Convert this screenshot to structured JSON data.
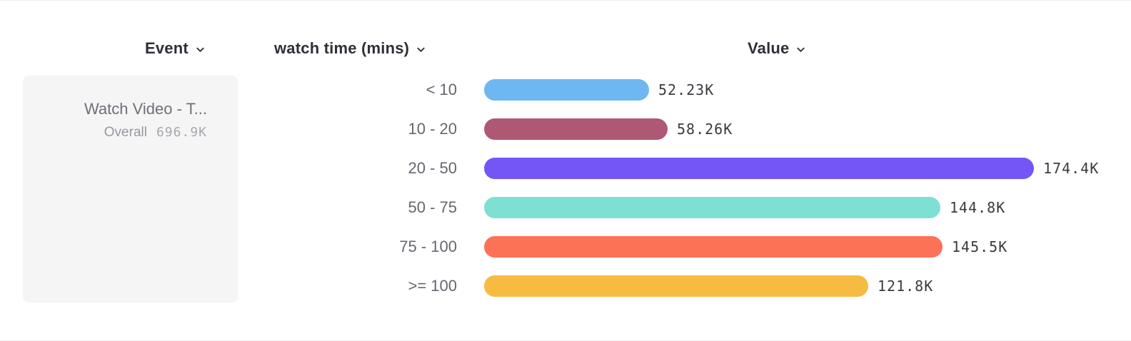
{
  "header": {
    "columns": [
      {
        "label": "Event"
      },
      {
        "label": "watch time (mins)"
      },
      {
        "label": "Value"
      }
    ]
  },
  "event_card": {
    "title": "Watch Video - T...",
    "overall_label": "Overall",
    "overall_value": "696.9K"
  },
  "chart_data": {
    "type": "bar",
    "orientation": "horizontal",
    "title": "",
    "xlabel": "Value",
    "ylabel": "watch time (mins)",
    "categories": [
      "< 10",
      "10 - 20",
      "20 - 50",
      "50 - 75",
      "75 - 100",
      ">= 100"
    ],
    "values": [
      52230,
      58260,
      174400,
      144800,
      145500,
      121800
    ],
    "value_labels": [
      "52.23K",
      "58.26K",
      "174.4K",
      "144.8K",
      "145.5K",
      "121.8K"
    ],
    "bar_colors": [
      "#6FB7F0",
      "#AE5873",
      "#7456F6",
      "#7DE0D3",
      "#FC7257",
      "#F6BB40"
    ],
    "grid": false,
    "legend": false
  },
  "colors": {
    "header_text": "#2e3038",
    "category_text": "#64676e",
    "value_text": "#3a3b40",
    "card_bg": "#f5f5f6"
  }
}
